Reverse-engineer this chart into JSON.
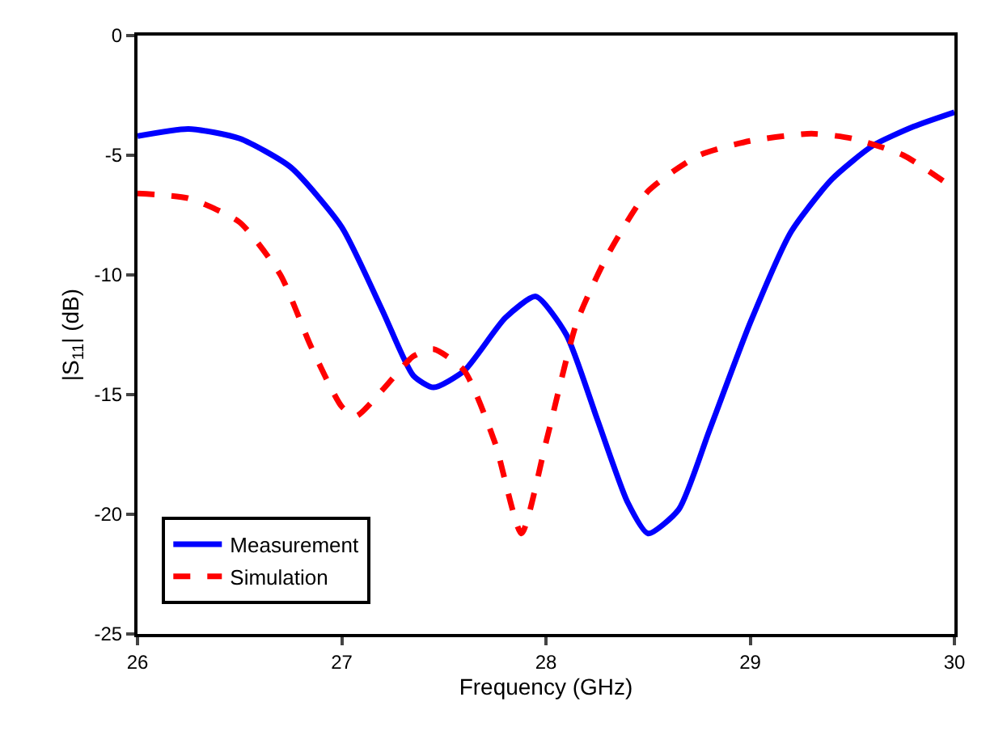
{
  "chart_data": {
    "type": "line",
    "xlabel": "Frequency (GHz)",
    "ylabel": "|S$_{11}$| (dB)",
    "xlim": [
      26,
      30
    ],
    "xticks": [
      26,
      27,
      28,
      29,
      30
    ],
    "ylim": [
      -25,
      0
    ],
    "yticks": [
      -25,
      -20,
      -15,
      -10,
      -5,
      0
    ],
    "legend": "bottom left",
    "marker": "none",
    "series": [
      {
        "name": "Measurement",
        "color": "#0000ff",
        "line_style": "solid",
        "x": [
          26,
          26.25,
          26.5,
          26.75,
          27,
          27.2,
          27.35,
          27.45,
          27.6,
          27.8,
          27.95,
          28.1,
          28.25,
          28.4,
          28.5,
          28.65,
          28.8,
          29.0,
          29.2,
          29.4,
          29.6,
          29.8,
          30
        ],
        "values": [
          -4.2,
          -3.9,
          -4.3,
          -5.5,
          -8,
          -11.5,
          -14.2,
          -14.7,
          -14.0,
          -11.8,
          -10.9,
          -12.5,
          -16,
          -19.5,
          -20.8,
          -19.8,
          -16.5,
          -12,
          -8.2,
          -6,
          -4.6,
          -3.8,
          -3.2
        ]
      },
      {
        "name": "Simulation",
        "color": "#ff0000",
        "line_style": "dashed",
        "x": [
          26,
          26.25,
          26.5,
          26.7,
          26.85,
          27.0,
          27.07,
          27.2,
          27.35,
          27.45,
          27.6,
          27.75,
          27.88,
          28.0,
          28.15,
          28.3,
          28.5,
          28.75,
          29.0,
          29.3,
          29.5,
          29.75,
          30
        ],
        "values": [
          -6.6,
          -6.8,
          -7.8,
          -10,
          -13,
          -15.5,
          -15.9,
          -14.8,
          -13.4,
          -13.1,
          -14,
          -17,
          -20.8,
          -17,
          -12,
          -9.2,
          -6.5,
          -5,
          -4.4,
          -4.1,
          -4.3,
          -5.0,
          -6.4
        ]
      }
    ]
  }
}
